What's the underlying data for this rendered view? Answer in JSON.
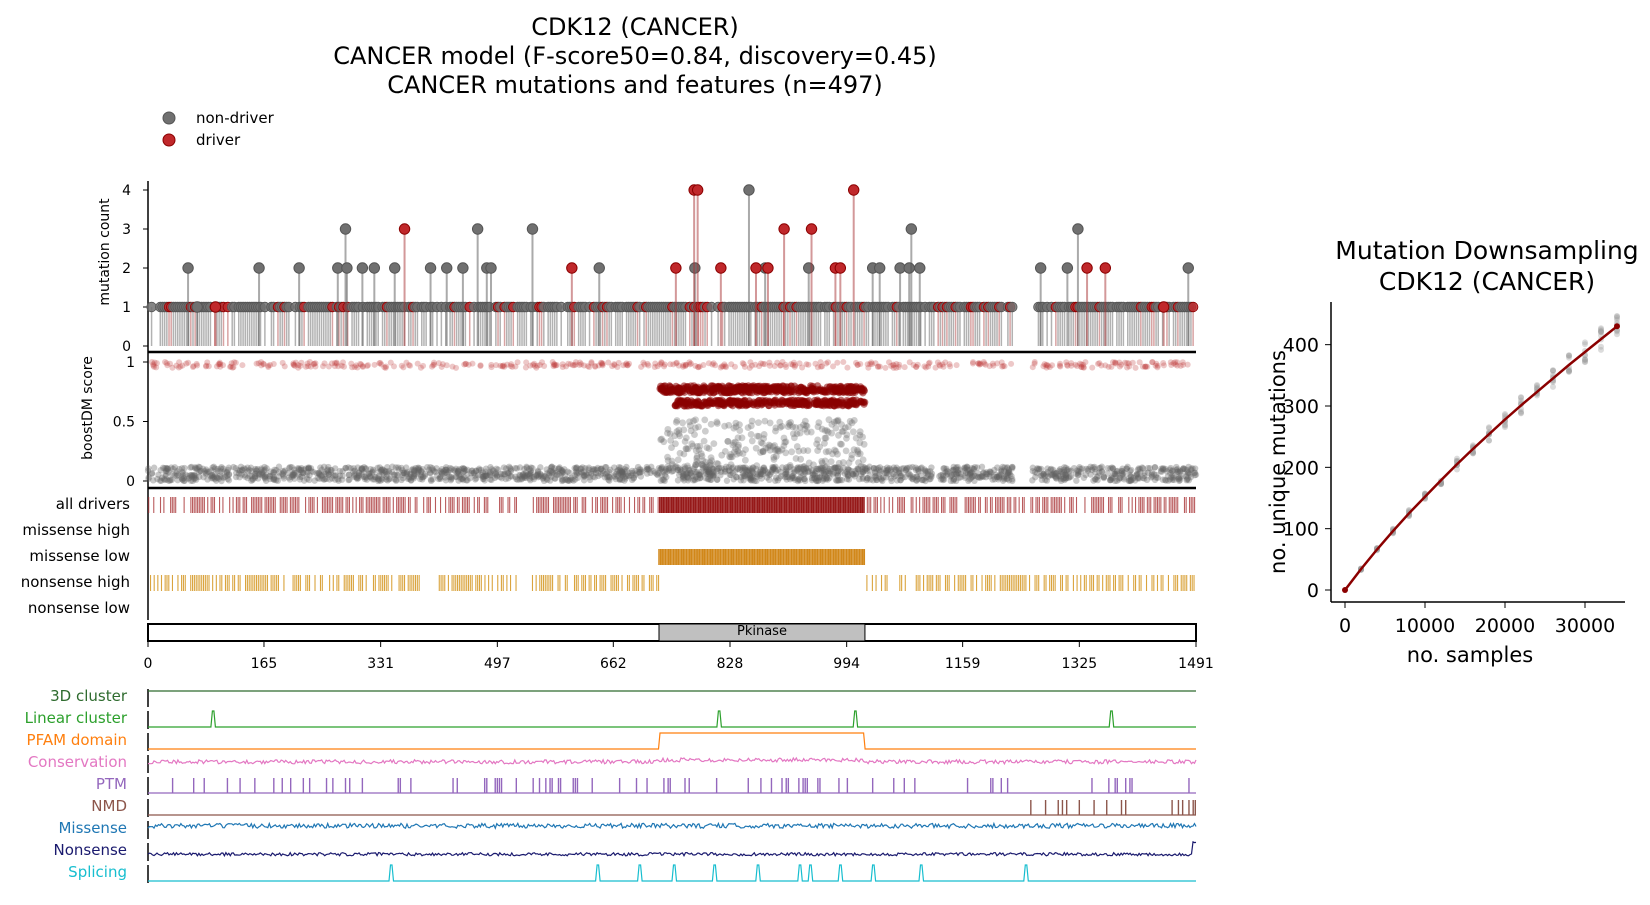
{
  "titles": {
    "line1": "CDK12 (CANCER)",
    "line2": "CANCER model (F-score50=0.84, discovery=0.45)",
    "line3": "CANCER mutations and features (n=497)"
  },
  "legend": {
    "non_driver": "non-driver",
    "driver": "driver",
    "non_driver_color": "#707070",
    "driver_color": "#c0282b"
  },
  "colors": {
    "driver_dark": "#8b0000",
    "nonsense_high": "#d4941c",
    "missense_low": "#cc7a00",
    "pfam_domain_fill": "#c0c0c0"
  },
  "chart_data": [
    {
      "id": "lollipop",
      "type": "scatter",
      "title": "",
      "xlabel": "",
      "ylabel": "mutation count",
      "xlim": [
        0,
        1491
      ],
      "ylim": [
        0,
        4
      ],
      "yticks": [
        "0",
        "1",
        "2",
        "3",
        "4"
      ],
      "series": [
        {
          "name": "non-driver",
          "points": [
            [
              57,
              2
            ],
            [
              70,
              1
            ],
            [
              158,
              2
            ],
            [
              215,
              2
            ],
            [
              270,
              2
            ],
            [
              281,
              3
            ],
            [
              283,
              2
            ],
            [
              305,
              2
            ],
            [
              322,
              2
            ],
            [
              351,
              2
            ],
            [
              402,
              2
            ],
            [
              425,
              2
            ],
            [
              448,
              2
            ],
            [
              469,
              3
            ],
            [
              482,
              2
            ],
            [
              488,
              2
            ],
            [
              547,
              3
            ],
            [
              642,
              2
            ],
            [
              778,
              2
            ],
            [
              855,
              4
            ],
            [
              878,
              2
            ],
            [
              940,
              2
            ],
            [
              1031,
              2
            ],
            [
              1041,
              2
            ],
            [
              1070,
              2
            ],
            [
              1083,
              2
            ],
            [
              1086,
              3
            ],
            [
              1098,
              2
            ],
            [
              1270,
              2
            ],
            [
              1308,
              2
            ],
            [
              1323,
              3
            ],
            [
              1480,
              2
            ]
          ]
        },
        {
          "name": "driver",
          "points": [
            [
              96,
              1
            ],
            [
              365,
              3
            ],
            [
              603,
              2
            ],
            [
              751,
              2
            ],
            [
              777,
              4
            ],
            [
              782,
              4
            ],
            [
              815,
              2
            ],
            [
              865,
              2
            ],
            [
              882,
              2
            ],
            [
              905,
              3
            ],
            [
              944,
              3
            ],
            [
              978,
              2
            ],
            [
              985,
              2
            ],
            [
              1004,
              4
            ],
            [
              1336,
              2
            ],
            [
              1362,
              2
            ],
            [
              1445,
              1
            ]
          ]
        }
      ],
      "baseline_count": 1
    },
    {
      "id": "boostdm",
      "type": "scatter",
      "ylabel": "boostDM score",
      "xlim": [
        0,
        1491
      ],
      "ylim": [
        0,
        1
      ],
      "yticks": [
        "0",
        "0.5",
        "1"
      ],
      "groups": [
        {
          "name": "driver outside kinase",
          "x_range": [
            0,
            1491
          ],
          "score_range": [
            0.95,
            1.0
          ]
        },
        {
          "name": "driver kinase upper",
          "x_range": [
            728,
            1020
          ],
          "score_range": [
            0.74,
            0.8
          ]
        },
        {
          "name": "driver kinase lower",
          "x_range": [
            750,
            1020
          ],
          "score_range": [
            0.63,
            0.68
          ]
        },
        {
          "name": "non-driver kinase",
          "x_range": [
            728,
            1020
          ],
          "score_range": [
            0.1,
            0.52
          ]
        },
        {
          "name": "non-driver baseline",
          "x_range": [
            0,
            1491
          ],
          "score_range": [
            0.0,
            0.12
          ]
        }
      ]
    },
    {
      "id": "rows",
      "type": "heatmap",
      "rows": [
        "all drivers",
        "missense high",
        "missense low",
        "nonsense high",
        "nonsense low"
      ],
      "domain": {
        "name": "Pkinase",
        "start": 727,
        "end": 1020
      },
      "xticks": [
        "0",
        "165",
        "331",
        "497",
        "662",
        "828",
        "994",
        "1159",
        "1325",
        "1491"
      ],
      "xtick_values": [
        0,
        165,
        331,
        497,
        662,
        828,
        994,
        1159,
        1325,
        1491
      ]
    },
    {
      "id": "features",
      "type": "line",
      "tracks": [
        {
          "name": "3D cluster",
          "color": "#2e6b2e"
        },
        {
          "name": "Linear cluster",
          "color": "#2ca02c"
        },
        {
          "name": "PFAM domain",
          "color": "#ff7f0e"
        },
        {
          "name": "Conservation",
          "color": "#e377c2"
        },
        {
          "name": "PTM",
          "color": "#9467bd"
        },
        {
          "name": "NMD",
          "color": "#8c564b"
        },
        {
          "name": "Missense",
          "color": "#1f77b4"
        },
        {
          "name": "Nonsense",
          "color": "#1a1a6e"
        },
        {
          "name": "Splicing",
          "color": "#17becf"
        }
      ],
      "linear_cluster_peaks": [
        92,
        812,
        1007,
        1371
      ],
      "splicing_peaks": [
        347,
        641,
        700,
        748,
        807,
        867,
        927,
        943,
        985,
        1031,
        1100,
        1250
      ],
      "pfam_domain": [
        727,
        1020
      ],
      "nmd_start": 1250
    },
    {
      "id": "downsampling",
      "type": "line",
      "title": "Mutation Downsampling\nCDK12 (CANCER)",
      "xlabel": "no. samples",
      "ylabel": "no. unique mutations",
      "xlim": [
        0,
        34000
      ],
      "ylim": [
        0,
        450
      ],
      "xticks": [
        "0",
        "10000",
        "20000",
        "30000"
      ],
      "xtick_values": [
        0,
        10000,
        20000,
        30000
      ],
      "yticks": [
        "0",
        "100",
        "200",
        "300",
        "400"
      ],
      "ytick_values": [
        0,
        100,
        200,
        300,
        400
      ],
      "series": [
        {
          "x": [
            0,
            2000,
            4000,
            6000,
            8000,
            10000,
            12000,
            14000,
            16000,
            18000,
            20000,
            22000,
            24000,
            26000,
            28000,
            30000,
            32000,
            34000
          ],
          "values": [
            0,
            34,
            66,
            96,
            125,
            152,
            179,
            205,
            230,
            254,
            278,
            301,
            323,
            345,
            367,
            388,
            409,
            430
          ]
        }
      ]
    }
  ],
  "title_lines_right": [
    "Mutation Downsampling",
    "CDK12 (CANCER)"
  ]
}
